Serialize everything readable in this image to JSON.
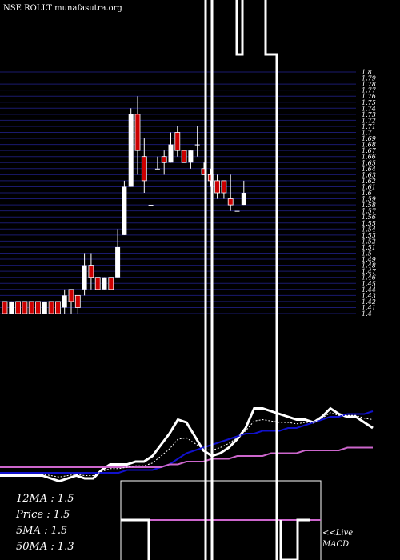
{
  "header": {
    "watermark": "NSE ROLLT munafasutra.org"
  },
  "stats": {
    "ma12": "12MA : 1.5",
    "price": "Price  : 1.5",
    "ma5": "5MA : 1.5",
    "ma50": "50MA : 1.3"
  },
  "footer": {
    "live": "<<Live",
    "macd": "MACD"
  },
  "colors": {
    "background": "#000000",
    "grid": "#1a1a6e",
    "up": "#ffffff",
    "down": "#cc0000",
    "ma_fast": "#ffffff",
    "ma_mid": "#1111cc",
    "ma_slow": "#cc66cc"
  },
  "chart_data": {
    "type": "candlestick",
    "y_tick_labels": [
      "1.8",
      "1.79",
      "1.78",
      "1.77",
      "1.76",
      "1.75",
      "1.74",
      "1.73",
      "1.72",
      "1.71",
      "1.7",
      "1.69",
      "1.68",
      "1.67",
      "1.66",
      "1.65",
      "1.64",
      "1.63",
      "1.62",
      "1.61",
      "1.6",
      "1.59",
      "1.58",
      "1.57",
      "1.56",
      "1.55",
      "1.54",
      "1.53",
      "1.52",
      "1.51",
      "1.5",
      "1.49",
      "1.48",
      "1.47",
      "1.46",
      "1.45",
      "1.44",
      "1.43",
      "1.42",
      "1.41",
      "1.4"
    ],
    "ylim": [
      1.4,
      1.8
    ],
    "candles": [
      {
        "o": 1.42,
        "h": 1.42,
        "l": 1.4,
        "c": 1.4
      },
      {
        "o": 1.4,
        "h": 1.42,
        "l": 1.4,
        "c": 1.42
      },
      {
        "o": 1.42,
        "h": 1.42,
        "l": 1.4,
        "c": 1.4
      },
      {
        "o": 1.42,
        "h": 1.42,
        "l": 1.4,
        "c": 1.4
      },
      {
        "o": 1.42,
        "h": 1.42,
        "l": 1.4,
        "c": 1.4
      },
      {
        "o": 1.42,
        "h": 1.42,
        "l": 1.4,
        "c": 1.4
      },
      {
        "o": 1.4,
        "h": 1.42,
        "l": 1.4,
        "c": 1.42
      },
      {
        "o": 1.42,
        "h": 1.42,
        "l": 1.4,
        "c": 1.4
      },
      {
        "o": 1.42,
        "h": 1.42,
        "l": 1.4,
        "c": 1.4
      },
      {
        "o": 1.41,
        "h": 1.44,
        "l": 1.4,
        "c": 1.43
      },
      {
        "o": 1.44,
        "h": 1.44,
        "l": 1.4,
        "c": 1.42
      },
      {
        "o": 1.43,
        "h": 1.43,
        "l": 1.4,
        "c": 1.41
      },
      {
        "o": 1.44,
        "h": 1.5,
        "l": 1.43,
        "c": 1.48
      },
      {
        "o": 1.48,
        "h": 1.5,
        "l": 1.44,
        "c": 1.46
      },
      {
        "o": 1.46,
        "h": 1.46,
        "l": 1.44,
        "c": 1.44
      },
      {
        "o": 1.44,
        "h": 1.46,
        "l": 1.44,
        "c": 1.46
      },
      {
        "o": 1.46,
        "h": 1.46,
        "l": 1.44,
        "c": 1.44
      },
      {
        "o": 1.46,
        "h": 1.54,
        "l": 1.46,
        "c": 1.51
      },
      {
        "o": 1.53,
        "h": 1.62,
        "l": 1.53,
        "c": 1.61
      },
      {
        "o": 1.61,
        "h": 1.74,
        "l": 1.61,
        "c": 1.73
      },
      {
        "o": 1.73,
        "h": 1.76,
        "l": 1.63,
        "c": 1.67
      },
      {
        "o": 1.66,
        "h": 1.69,
        "l": 1.6,
        "c": 1.62
      },
      {
        "o": 1.58,
        "h": 1.58,
        "l": 1.58,
        "c": 1.58
      },
      {
        "o": 1.64,
        "h": 1.66,
        "l": 1.64,
        "c": 1.64
      },
      {
        "o": 1.66,
        "h": 1.67,
        "l": 1.63,
        "c": 1.65
      },
      {
        "o": 1.65,
        "h": 1.7,
        "l": 1.65,
        "c": 1.68
      },
      {
        "o": 1.7,
        "h": 1.71,
        "l": 1.66,
        "c": 1.67
      },
      {
        "o": 1.67,
        "h": 1.67,
        "l": 1.65,
        "c": 1.65
      },
      {
        "o": 1.65,
        "h": 1.67,
        "l": 1.64,
        "c": 1.67
      },
      {
        "o": 1.68,
        "h": 1.71,
        "l": 1.66,
        "c": 1.68
      },
      {
        "o": 1.64,
        "h": 1.65,
        "l": 1.63,
        "c": 1.63
      },
      {
        "o": 1.63,
        "h": 1.64,
        "l": 1.61,
        "c": 1.62
      },
      {
        "o": 1.62,
        "h": 1.63,
        "l": 1.59,
        "c": 1.6
      },
      {
        "o": 1.62,
        "h": 1.62,
        "l": 1.59,
        "c": 1.6
      },
      {
        "o": 1.59,
        "h": 1.63,
        "l": 1.57,
        "c": 1.58
      },
      {
        "o": 1.57,
        "h": 1.57,
        "l": 1.57,
        "c": 1.57
      },
      {
        "o": 1.58,
        "h": 1.62,
        "l": 1.58,
        "c": 1.6
      }
    ],
    "overlay_series": [
      {
        "values": [
          33,
          33,
          33,
          33,
          33,
          33,
          32,
          31,
          32,
          33,
          32,
          32,
          35,
          37,
          37,
          37,
          38,
          38,
          40,
          44,
          48,
          53,
          52,
          47,
          42,
          40,
          41,
          43,
          46,
          50,
          57,
          57,
          56,
          55,
          54,
          53,
          53,
          52,
          54,
          57,
          55,
          54,
          54,
          52,
          50
        ]
      },
      {
        "values": [
          34,
          34,
          34,
          34,
          34,
          34,
          34,
          34,
          34,
          34,
          34,
          34,
          34,
          34,
          34,
          35,
          35,
          35,
          35,
          36,
          37,
          39,
          41,
          42,
          43,
          44,
          45,
          46,
          47,
          48,
          48,
          49,
          49,
          49,
          50,
          50,
          51,
          52,
          53,
          54,
          54,
          55,
          55,
          55,
          56
        ]
      },
      {
        "values": [
          36,
          36,
          36,
          36,
          36,
          36,
          36,
          36,
          36,
          36,
          36,
          36,
          36,
          36,
          36,
          36,
          36,
          36,
          36,
          36,
          37,
          37,
          38,
          38,
          38,
          39,
          39,
          39,
          40,
          40,
          40,
          40,
          41,
          41,
          41,
          41,
          42,
          42,
          42,
          42,
          42,
          43,
          43,
          43,
          43
        ]
      }
    ],
    "price_line": [
      -3,
      -3,
      -3,
      -3,
      -3,
      -3,
      -3,
      -3,
      -3,
      -3,
      -3,
      -3,
      -3,
      -3,
      -3,
      -3,
      -3,
      -3,
      -3,
      -3,
      -3,
      -3,
      -3,
      -3,
      -3,
      -3,
      -3,
      -3,
      -3,
      -3,
      -3,
      -3,
      -3,
      -3,
      -3,
      -3,
      -3,
      -3,
      -3,
      -3,
      -3,
      -3,
      -3,
      -3,
      -3
    ]
  }
}
